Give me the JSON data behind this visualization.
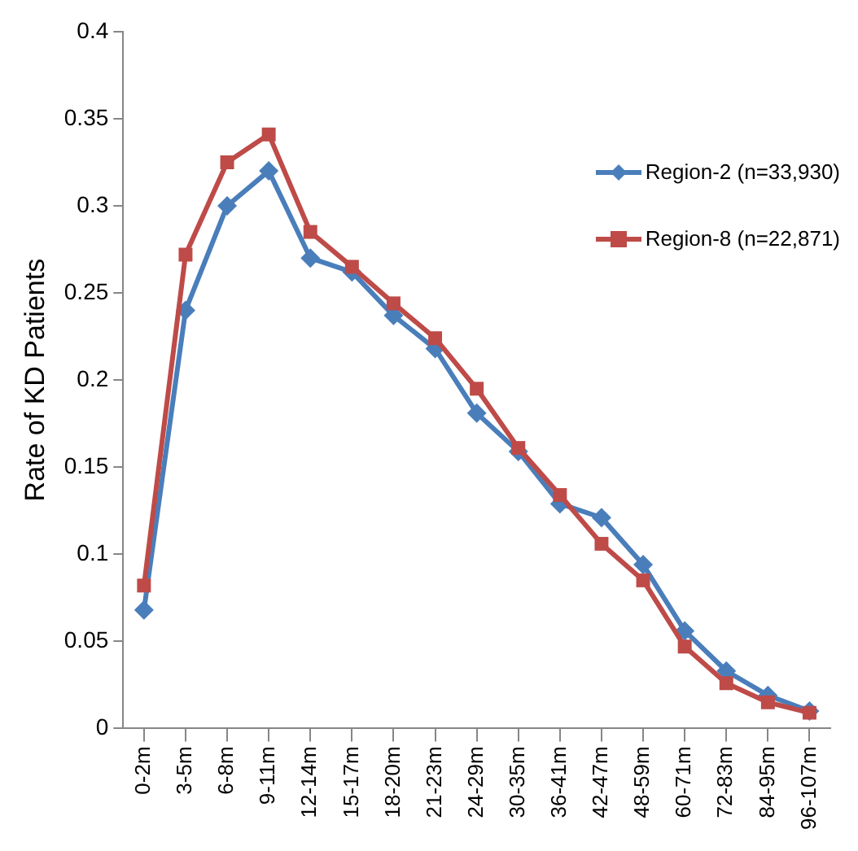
{
  "chart_data": {
    "type": "line",
    "ylabel": "Rate of KD Patients",
    "categories": [
      "0-2m",
      "3-5m",
      "6-8m",
      "9-11m",
      "12-14m",
      "15-17m",
      "18-20m",
      "21-23m",
      "24-29m",
      "30-35m",
      "36-41m",
      "42-47m",
      "48-59m",
      "60-71m",
      "72-83m",
      "84-95m",
      "96-107m"
    ],
    "series": [
      {
        "name": "Region-2 (n=33,930)",
        "color": "#4a7ebb",
        "marker": "diamond",
        "values": [
          0.068,
          0.24,
          0.3,
          0.32,
          0.27,
          0.262,
          0.237,
          0.218,
          0.181,
          0.159,
          0.129,
          0.121,
          0.094,
          0.056,
          0.033,
          0.019,
          0.01
        ]
      },
      {
        "name": "Region-8 (n=22,871)",
        "color": "#be4b48",
        "marker": "square",
        "values": [
          0.082,
          0.272,
          0.325,
          0.341,
          0.285,
          0.265,
          0.244,
          0.224,
          0.195,
          0.161,
          0.134,
          0.106,
          0.085,
          0.047,
          0.026,
          0.015,
          0.009
        ]
      }
    ],
    "ylim": [
      0,
      0.4
    ],
    "yticks": [
      0,
      0.05,
      0.1,
      0.15,
      0.2,
      0.25,
      0.3,
      0.35,
      0.4
    ],
    "grid": false,
    "legend": "right",
    "line_style": "solid"
  }
}
